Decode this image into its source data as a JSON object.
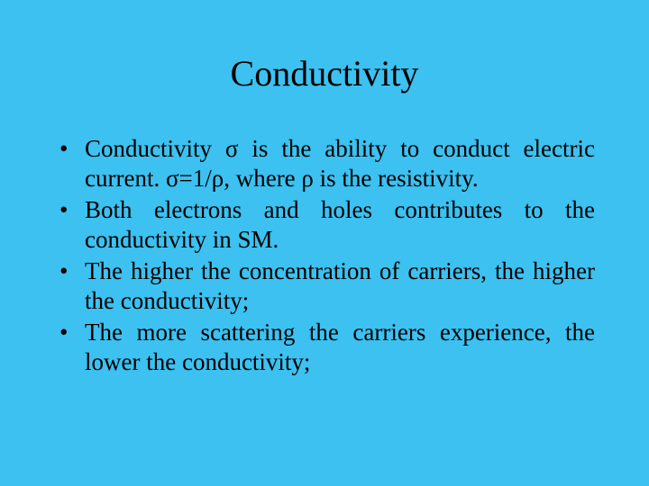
{
  "slide": {
    "background_color": "#3cc1f0",
    "text_color": "#000000",
    "title": "Conductivity",
    "title_fontsize": 40,
    "bullet_fontsize": 27,
    "bullets": [
      "Conductivity σ is the ability to conduct electric current. σ=1/ρ, where ρ is the resistivity.",
      "Both electrons and holes contributes to the conductivity in SM.",
      "The higher the concentration of carriers, the higher the conductivity;",
      "The more scattering the carriers experience, the lower the conductivity;"
    ]
  }
}
